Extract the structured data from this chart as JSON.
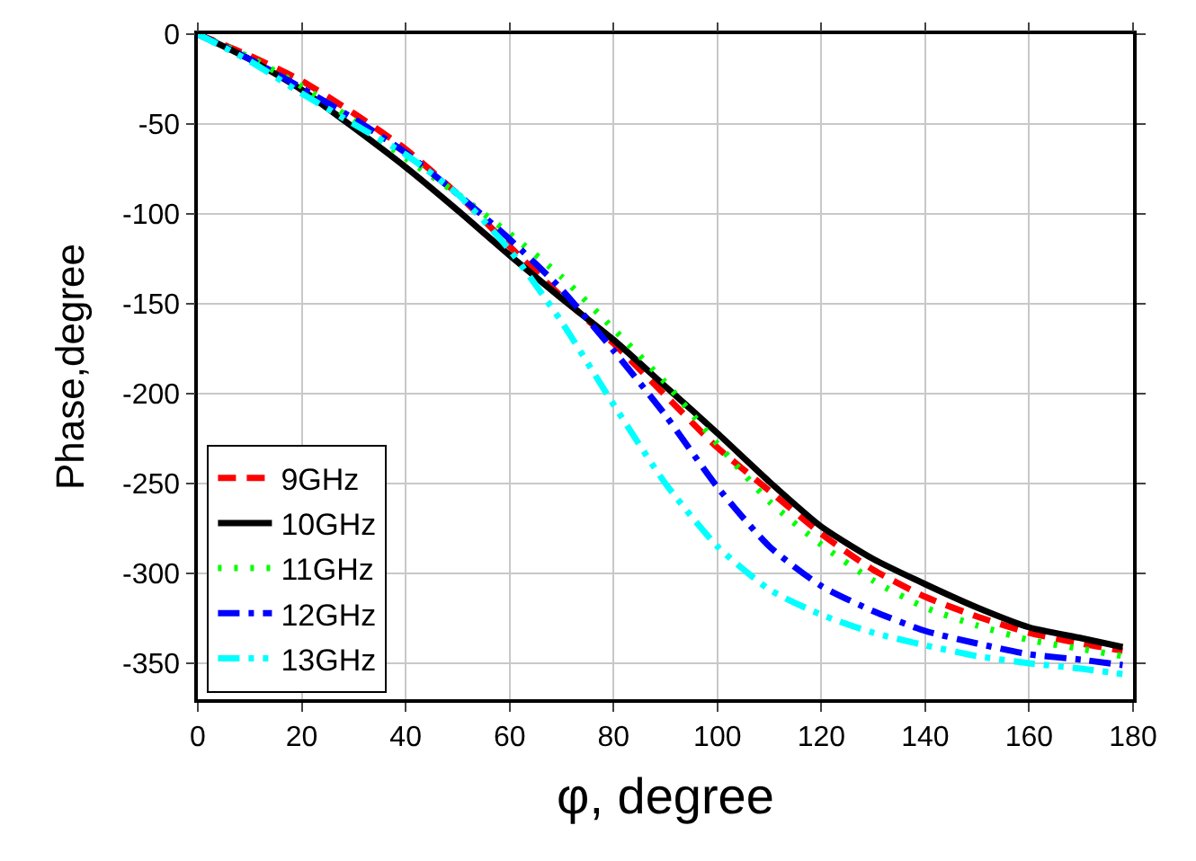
{
  "chart_data": {
    "type": "line",
    "xlabel": "φ, degree",
    "ylabel": "Phase,degree",
    "x": [
      0,
      10,
      20,
      30,
      40,
      50,
      60,
      70,
      80,
      90,
      100,
      110,
      120,
      130,
      140,
      150,
      160,
      170,
      178
    ],
    "series": [
      {
        "name": "9GHz",
        "color": "#ff0000",
        "line_style": "dashed",
        "values": [
          0,
          -12,
          -26,
          -44,
          -64,
          -89,
          -118,
          -146,
          -172,
          -201,
          -230,
          -254,
          -278,
          -298,
          -313,
          -324,
          -333,
          -339,
          -343
        ]
      },
      {
        "name": "10GHz",
        "color": "#000000",
        "line_style": "solid",
        "values": [
          0,
          -14,
          -31,
          -52,
          -74,
          -98,
          -123,
          -147,
          -170,
          -196,
          -222,
          -249,
          -274,
          -292,
          -306,
          -319,
          -330,
          -336,
          -341
        ]
      },
      {
        "name": "11GHz",
        "color": "#00ff00",
        "line_style": "dotted",
        "values": [
          0,
          -13,
          -29,
          -48,
          -69,
          -89,
          -111,
          -135,
          -164,
          -194,
          -228,
          -260,
          -284,
          -304,
          -319,
          -329,
          -337,
          -342,
          -346
        ]
      },
      {
        "name": "12GHz",
        "color": "#0000ff",
        "line_style": "dashdot",
        "values": [
          0,
          -14,
          -30,
          -47,
          -66,
          -89,
          -114,
          -142,
          -176,
          -212,
          -252,
          -285,
          -307,
          -321,
          -332,
          -339,
          -345,
          -348,
          -351
        ]
      },
      {
        "name": "13GHz",
        "color": "#00ffff",
        "line_style": "dashdotdot",
        "values": [
          0,
          -15,
          -33,
          -50,
          -67,
          -89,
          -120,
          -160,
          -206,
          -250,
          -285,
          -309,
          -323,
          -333,
          -340,
          -346,
          -350,
          -353,
          -356
        ]
      }
    ],
    "xlim": [
      0,
      180
    ],
    "xticks": [
      0,
      20,
      40,
      60,
      80,
      100,
      120,
      140,
      160,
      180
    ],
    "ylim": [
      -370,
      0
    ],
    "yticks": [
      0,
      -50,
      -100,
      -150,
      -200,
      -250,
      -300,
      -350
    ],
    "grid": true,
    "legend": "bottom left",
    "marker": "none"
  }
}
